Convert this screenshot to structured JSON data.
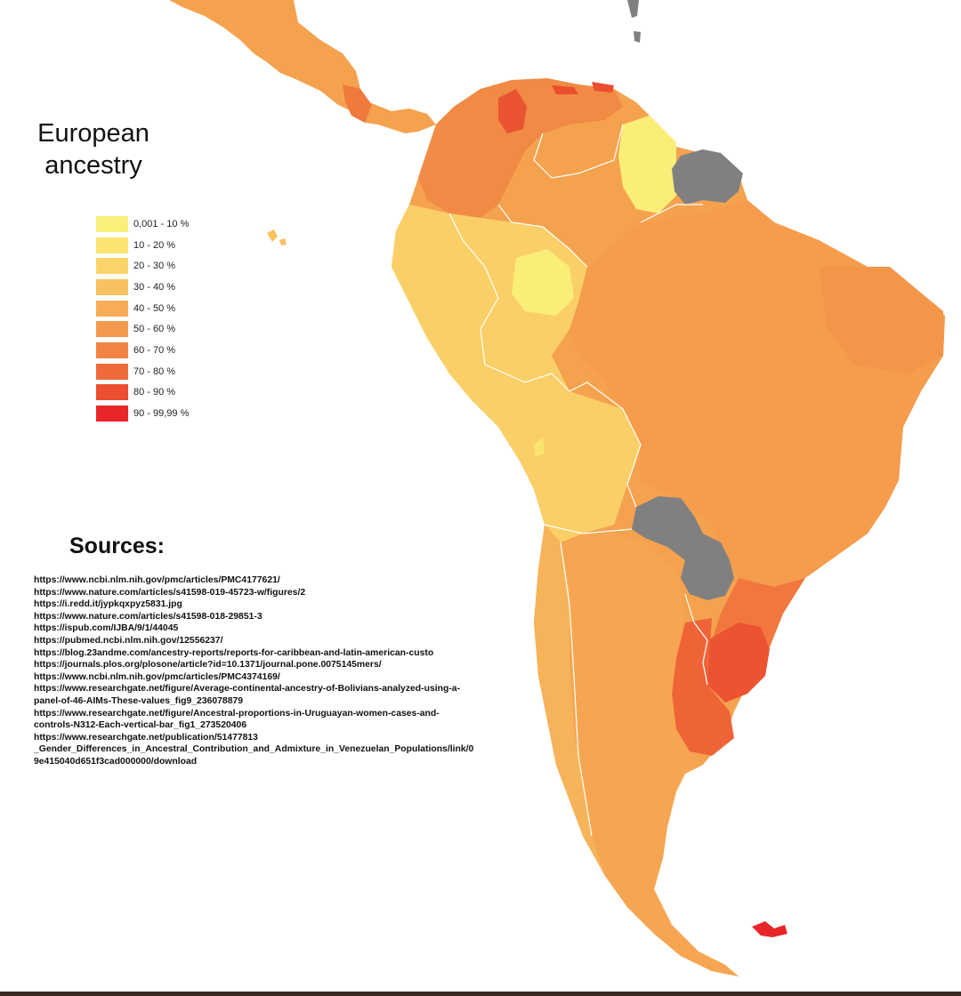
{
  "map": {
    "title_line1": "European",
    "title_line2": "ancestry",
    "legend": [
      {
        "label": "0,001 - 10 %",
        "color": "#f9f07a"
      },
      {
        "label": "10 - 20 %",
        "color": "#fbe472"
      },
      {
        "label": "20 - 30 %",
        "color": "#fbd469"
      },
      {
        "label": "30 - 40 %",
        "color": "#f9c160"
      },
      {
        "label": "40 - 50 %",
        "color": "#f7ad55"
      },
      {
        "label": "50 - 60 %",
        "color": "#f49a4c"
      },
      {
        "label": "60 - 70 %",
        "color": "#f28443"
      },
      {
        "label": "70 - 80 %",
        "color": "#ef6a3a"
      },
      {
        "label": "80 - 90 %",
        "color": "#ec4e30"
      },
      {
        "label": "90 - 99,99 %",
        "color": "#e8262a"
      }
    ],
    "no_data_color": "#808080",
    "border_color": "#ffffff"
  },
  "sources": {
    "heading": "Sources:",
    "lines": [
      "https://www.ncbi.nlm.nih.gov/pmc/articles/PMC4177621/",
      "https://www.nature.com/articles/s41598-019-45723-w/figures/2",
      "https://i.redd.it/jypkqxpyz5831.jpg",
      "https://www.nature.com/articles/s41598-018-29851-3",
      "https://ispub.com/IJBA/9/1/44045",
      "https://pubmed.ncbi.nlm.nih.gov/12556237/",
      "https://blog.23andme.com/ancestry-reports/reports-for-caribbean-and-latin-american-custo",
      "https://journals.plos.org/plosone/article?id=10.1371/journal.pone.0075145mers/",
      "https://www.ncbi.nlm.nih.gov/pmc/articles/PMC4374169/",
      "https://www.researchgate.net/figure/Average-continental-ancestry-of-Bolivians-analyzed-using-a-",
      "panel-of-46-AIMs-These-values_fig9_236078879",
      "https://www.researchgate.net/figure/Ancestral-proportions-in-Uruguayan-women-cases-and-",
      "controls-N312-Each-vertical-bar_fig1_273520406",
      "https://www.researchgate.net/publication/51477813",
      "_Gender_Differences_in_Ancestral_Contribution_and_Admixture_in_Venezuelan_Populations/link/0",
      "9e415040d651f3cad000000/download"
    ]
  }
}
